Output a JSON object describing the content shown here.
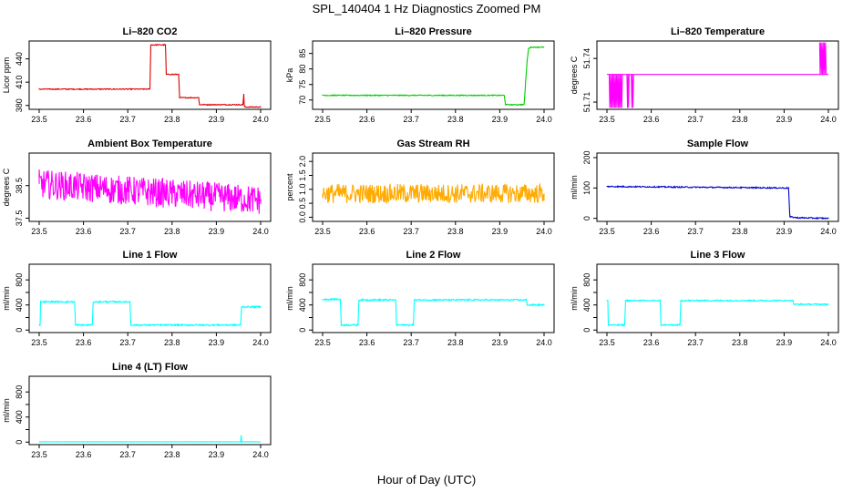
{
  "figure": {
    "title": "SPL_140404  1 Hz Diagnostics Zoomed PM",
    "xlabel": "Hour of Day (UTC)"
  },
  "chart_data": [
    {
      "type": "line",
      "title": "Li–820 CO2",
      "ylabel": "Licor ppm",
      "color": "#dd0000",
      "xlim": [
        23.5,
        24.0
      ],
      "ylim": [
        375,
        463
      ],
      "xticks": [
        23.5,
        23.6,
        23.7,
        23.8,
        23.9,
        24.0
      ],
      "xtick_labels": [
        "23.5",
        "23.6",
        "23.7",
        "23.8",
        "23.9",
        "24.0"
      ],
      "yticks": [
        380,
        410,
        440
      ],
      "ytick_labels": [
        "380",
        "410",
        "440"
      ],
      "noise": 0.6,
      "x": [
        23.5,
        23.75,
        23.752,
        23.785,
        23.787,
        23.815,
        23.817,
        23.86,
        23.862,
        23.96,
        23.962,
        23.963,
        23.965,
        24.0
      ],
      "y": [
        401,
        401,
        458,
        458,
        420,
        420,
        390,
        390,
        381,
        381,
        395,
        380,
        378,
        378
      ]
    },
    {
      "type": "line",
      "title": "Li–820 Pressure",
      "ylabel": "kPa",
      "color": "#00cc00",
      "xlim": [
        23.5,
        24.0
      ],
      "ylim": [
        67,
        89
      ],
      "xticks": [
        23.5,
        23.6,
        23.7,
        23.8,
        23.9,
        24.0
      ],
      "xtick_labels": [
        "23.5",
        "23.6",
        "23.7",
        "23.8",
        "23.9",
        "24.0"
      ],
      "yticks": [
        70,
        75,
        80,
        85
      ],
      "ytick_labels": [
        "70",
        "75",
        "80",
        "85"
      ],
      "noise": 0.15,
      "x": [
        23.5,
        23.91,
        23.913,
        23.955,
        23.958,
        23.962,
        23.965,
        23.97,
        24.0
      ],
      "y": [
        71.5,
        71.5,
        68.5,
        68.5,
        75,
        83,
        86.5,
        87,
        87
      ]
    },
    {
      "type": "line",
      "title": "Li–820 Temperature",
      "ylabel": "degrees C",
      "color": "#ff00ff",
      "xlim": [
        23.5,
        24.0
      ],
      "ylim": [
        51.705,
        51.752
      ],
      "xticks": [
        23.5,
        23.6,
        23.7,
        23.8,
        23.9,
        24.0
      ],
      "xtick_labels": [
        "23.5",
        "23.6",
        "23.7",
        "23.8",
        "23.9",
        "24.0"
      ],
      "yticks": [
        51.71,
        51.74
      ],
      "ytick_labels": [
        "51.71",
        "51.74"
      ],
      "noise": 0,
      "x": [
        23.5,
        24.0
      ],
      "y": [
        51.729,
        51.729
      ],
      "bursts": [
        [
          23.505,
          23.535,
          51.706,
          51.729
        ],
        [
          23.545,
          23.55,
          51.706,
          51.729
        ],
        [
          23.555,
          23.56,
          51.706,
          51.729
        ],
        [
          23.98,
          23.995,
          51.729,
          51.751
        ]
      ]
    },
    {
      "type": "line",
      "title": "Ambient Box Temperature",
      "ylabel": "degrees C",
      "color": "#ff00ff",
      "xlim": [
        23.5,
        24.0
      ],
      "ylim": [
        37.4,
        39.5
      ],
      "xticks": [
        23.5,
        23.6,
        23.7,
        23.8,
        23.9,
        24.0
      ],
      "xtick_labels": [
        "23.5",
        "23.6",
        "23.7",
        "23.8",
        "23.9",
        "24.0"
      ],
      "yticks": [
        37.5,
        38.5
      ],
      "ytick_labels": [
        "37.5",
        "38.5"
      ],
      "noise": 0.45,
      "x": [
        23.5,
        24.0
      ],
      "y": [
        38.55,
        38.05
      ]
    },
    {
      "type": "line",
      "title": "Gas Stream RH",
      "ylabel": "percent",
      "color": "#ffaa00",
      "xlim": [
        23.5,
        24.0
      ],
      "ylim": [
        -0.15,
        2.3
      ],
      "xticks": [
        23.5,
        23.6,
        23.7,
        23.8,
        23.9,
        24.0
      ],
      "xtick_labels": [
        "23.5",
        "23.6",
        "23.7",
        "23.8",
        "23.9",
        "24.0"
      ],
      "yticks": [
        0.0,
        0.5,
        1.0,
        1.5,
        2.0
      ],
      "ytick_labels": [
        "0.0",
        "0.5",
        "1.0",
        "1.5",
        "2.0"
      ],
      "noise": 0.35,
      "x": [
        23.5,
        24.0
      ],
      "y": [
        0.85,
        0.85
      ]
    },
    {
      "type": "line",
      "title": "Sample Flow",
      "ylabel": "ml/min",
      "color": "#0000cc",
      "xlim": [
        23.5,
        24.0
      ],
      "ylim": [
        -10,
        215
      ],
      "xticks": [
        23.5,
        23.6,
        23.7,
        23.8,
        23.9,
        24.0
      ],
      "xtick_labels": [
        "23.5",
        "23.6",
        "23.7",
        "23.8",
        "23.9",
        "24.0"
      ],
      "yticks": [
        0,
        100,
        200
      ],
      "ytick_labels": [
        "0",
        "100",
        "200"
      ],
      "noise": 2.0,
      "x": [
        23.5,
        23.91,
        23.913,
        23.93,
        24.0
      ],
      "y": [
        105,
        100,
        5,
        2,
        0
      ]
    },
    {
      "type": "line",
      "title": "Line 1 Flow",
      "ylabel": "ml/min",
      "color": "#00ffff",
      "xlim": [
        23.5,
        24.0
      ],
      "ylim": [
        -40,
        1050
      ],
      "xticks": [
        23.5,
        23.6,
        23.7,
        23.8,
        23.9,
        24.0
      ],
      "xtick_labels": [
        "23.5",
        "23.6",
        "23.7",
        "23.8",
        "23.9",
        "24.0"
      ],
      "yticks": [
        0,
        200,
        400,
        600,
        800
      ],
      "ytick_labels": [
        "0",
        "400",
        "800"
      ],
      "tick_label_values": [
        0,
        400,
        800
      ],
      "noise": 12,
      "x": [
        23.5,
        23.502,
        23.503,
        23.58,
        23.582,
        23.62,
        23.622,
        23.705,
        23.707,
        23.955,
        23.957,
        24.0
      ],
      "y": [
        80,
        80,
        450,
        450,
        80,
        80,
        450,
        450,
        80,
        80,
        370,
        370
      ]
    },
    {
      "type": "line",
      "title": "Line 2 Flow",
      "ylabel": "ml/min",
      "color": "#00ffff",
      "xlim": [
        23.5,
        24.0
      ],
      "ylim": [
        -40,
        1050
      ],
      "xticks": [
        23.5,
        23.6,
        23.7,
        23.8,
        23.9,
        24.0
      ],
      "xtick_labels": [
        "23.5",
        "23.6",
        "23.7",
        "23.8",
        "23.9",
        "24.0"
      ],
      "yticks": [
        0,
        200,
        400,
        600,
        800
      ],
      "ytick_labels": [
        "0",
        "400",
        "800"
      ],
      "tick_label_values": [
        0,
        400,
        800
      ],
      "noise": 12,
      "x": [
        23.5,
        23.54,
        23.542,
        23.58,
        23.582,
        23.665,
        23.667,
        23.705,
        23.707,
        23.96,
        23.962,
        24.0
      ],
      "y": [
        490,
        490,
        80,
        80,
        480,
        480,
        80,
        80,
        480,
        480,
        400,
        400
      ]
    },
    {
      "type": "line",
      "title": "Line 3 Flow",
      "ylabel": "ml/min",
      "color": "#00ffff",
      "xlim": [
        23.5,
        24.0
      ],
      "ylim": [
        -40,
        1050
      ],
      "xticks": [
        23.5,
        23.6,
        23.7,
        23.8,
        23.9,
        24.0
      ],
      "xtick_labels": [
        "23.5",
        "23.6",
        "23.7",
        "23.8",
        "23.9",
        "24.0"
      ],
      "yticks": [
        0,
        200,
        400,
        600,
        800
      ],
      "ytick_labels": [
        "0",
        "400",
        "800"
      ],
      "tick_label_values": [
        0,
        400,
        800
      ],
      "noise": 10,
      "x": [
        23.5,
        23.502,
        23.503,
        23.54,
        23.542,
        23.62,
        23.622,
        23.665,
        23.667,
        23.92,
        23.922,
        24.0
      ],
      "y": [
        470,
        470,
        80,
        80,
        470,
        470,
        80,
        80,
        470,
        470,
        410,
        410
      ]
    },
    {
      "type": "line",
      "title": "Line 4 (LT) Flow",
      "ylabel": "ml/min",
      "color": "#00ffff",
      "xlim": [
        23.5,
        24.0
      ],
      "ylim": [
        -40,
        1050
      ],
      "xticks": [
        23.5,
        23.6,
        23.7,
        23.8,
        23.9,
        24.0
      ],
      "xtick_labels": [
        "23.5",
        "23.6",
        "23.7",
        "23.8",
        "23.9",
        "24.0"
      ],
      "yticks": [
        0,
        200,
        400,
        600,
        800
      ],
      "ytick_labels": [
        "0",
        "400",
        "800"
      ],
      "tick_label_values": [
        0,
        400,
        800
      ],
      "noise": 1.5,
      "x": [
        23.5,
        23.955,
        23.956,
        23.957,
        23.958,
        24.0
      ],
      "y": [
        5,
        5,
        110,
        5,
        5,
        5
      ]
    }
  ]
}
